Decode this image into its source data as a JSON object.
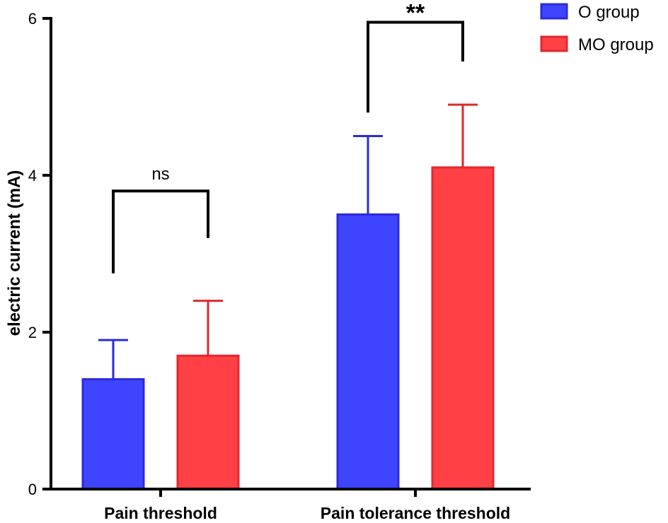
{
  "chart_data": {
    "type": "bar",
    "title": "",
    "xlabel": "",
    "ylabel": "electric current (mA)",
    "ylim": [
      0,
      6
    ],
    "yticks": [
      0,
      2,
      4,
      6
    ],
    "grid": false,
    "legend_position": "top-right",
    "categories": [
      "Pain threshold",
      "Pain tolerance threshold"
    ],
    "series": [
      {
        "name": "O group",
        "values": [
          1.4,
          3.5
        ],
        "error": [
          0.5,
          1.0
        ],
        "color": "#3f45ff",
        "edge_color": "#2b2bd9"
      },
      {
        "name": "MO group",
        "values": [
          1.7,
          4.1
        ],
        "error": [
          0.7,
          0.8
        ],
        "color": "#ff4044",
        "edge_color": "#e0292f"
      }
    ],
    "annotations": [
      {
        "category": "Pain threshold",
        "label": "ns",
        "bracket_y": 3.8
      },
      {
        "category": "Pain tolerance threshold",
        "label": "**",
        "bracket_y": 5.95
      }
    ]
  }
}
